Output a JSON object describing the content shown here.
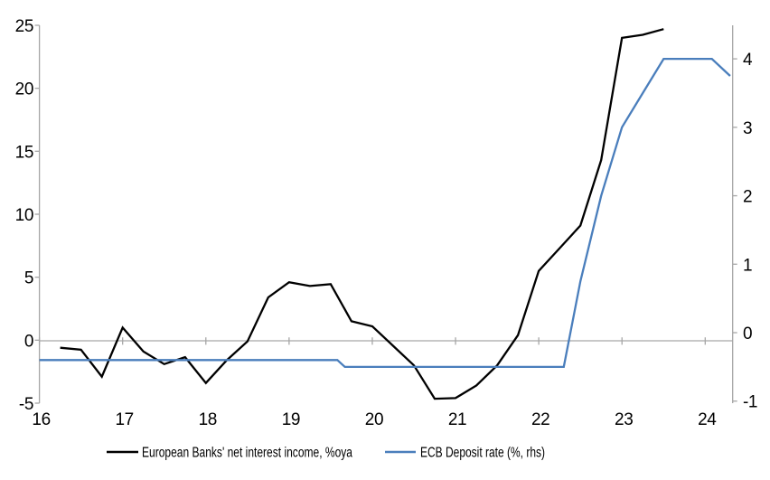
{
  "chart_data": {
    "type": "line",
    "x_axis": {
      "min": 16,
      "max": 24.33,
      "ticks": [
        16,
        17,
        18,
        19,
        20,
        21,
        22,
        23,
        24
      ]
    },
    "left_axis": {
      "min": -5,
      "max": 25,
      "ticks": [
        -5,
        0,
        5,
        10,
        15,
        20,
        25
      ]
    },
    "right_axis": {
      "min": -1.03,
      "max": 4.49,
      "ticks": [
        -1,
        0,
        1,
        2,
        3,
        4
      ]
    },
    "grid": "zero-line-only",
    "legend_position": "bottom-center",
    "series": [
      {
        "name": "European Banks' net interest income, %oya",
        "axis": "left",
        "color": "#000000",
        "x": [
          16.25,
          16.5,
          16.75,
          17.0,
          17.25,
          17.5,
          17.75,
          18.0,
          18.25,
          18.5,
          18.75,
          19.0,
          19.25,
          19.5,
          19.75,
          20.0,
          20.25,
          20.5,
          20.75,
          21.0,
          21.25,
          21.5,
          21.75,
          22.0,
          22.25,
          22.5,
          22.75,
          23.0,
          23.25,
          23.5
        ],
        "y": [
          -0.6,
          -0.75,
          -2.9,
          1.0,
          -0.9,
          -1.9,
          -1.35,
          -3.4,
          -1.6,
          -0.1,
          3.4,
          4.6,
          4.3,
          4.45,
          1.5,
          1.1,
          -0.45,
          -2.0,
          -4.65,
          -4.6,
          -3.6,
          -2.0,
          0.4,
          5.5,
          7.3,
          9.1,
          14.3,
          24.0,
          24.25,
          24.7
        ]
      },
      {
        "name": "ECB Deposit rate (%, rhs)",
        "axis": "right",
        "color": "#4a7ebc",
        "x": [
          16.0,
          19.58,
          19.67,
          22.3,
          22.5,
          22.75,
          23.0,
          23.25,
          23.5,
          24.08,
          24.3
        ],
        "y": [
          -0.4,
          -0.4,
          -0.5,
          -0.5,
          0.75,
          2.0,
          3.0,
          3.5,
          4.0,
          4.0,
          3.75
        ]
      }
    ]
  },
  "legend": {
    "items": [
      {
        "label": "European Banks' net interest income, %oya",
        "color": "#000000"
      },
      {
        "label": "ECB Deposit rate (%, rhs)",
        "color": "#4a7ebc"
      }
    ]
  },
  "colors": {
    "axis": "#a6a6a6",
    "zero_line": "#a6a6a6",
    "text": "#000000",
    "background": "#ffffff"
  }
}
